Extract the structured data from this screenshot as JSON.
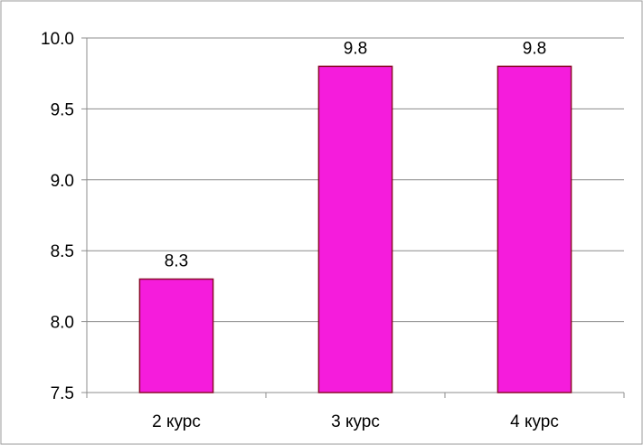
{
  "chart_data": {
    "type": "bar",
    "title": "",
    "xlabel": "",
    "ylabel": "",
    "categories": [
      "2 курс",
      "3 курс",
      "4 курс"
    ],
    "values": [
      8.3,
      9.8,
      9.8
    ],
    "data_labels": [
      "8.3",
      "9.8",
      "9.8"
    ],
    "ylim": [
      7.5,
      10.0
    ],
    "yticks": [
      7.5,
      8.0,
      8.5,
      9.0,
      9.5,
      10.0
    ],
    "ytick_labels": [
      "7.5",
      "8.0",
      "8.5",
      "9.0",
      "9.5",
      "10.0"
    ],
    "grid": true,
    "legend": "none",
    "bar_color": "#F51CDC",
    "bar_edge_color": "#8B0A2A",
    "grid_color": "#8C8C8C",
    "axis_color": "#8C8C8C"
  }
}
